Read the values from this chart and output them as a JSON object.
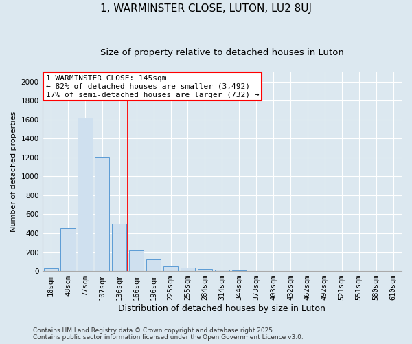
{
  "title1": "1, WARMINSTER CLOSE, LUTON, LU2 8UJ",
  "title2": "Size of property relative to detached houses in Luton",
  "xlabel": "Distribution of detached houses by size in Luton",
  "ylabel": "Number of detached properties",
  "categories": [
    "18sqm",
    "48sqm",
    "77sqm",
    "107sqm",
    "136sqm",
    "166sqm",
    "196sqm",
    "225sqm",
    "255sqm",
    "284sqm",
    "314sqm",
    "344sqm",
    "373sqm",
    "403sqm",
    "432sqm",
    "462sqm",
    "492sqm",
    "521sqm",
    "551sqm",
    "580sqm",
    "610sqm"
  ],
  "values": [
    30,
    450,
    1620,
    1210,
    500,
    220,
    125,
    50,
    40,
    20,
    15,
    10,
    0,
    0,
    0,
    0,
    0,
    0,
    0,
    0,
    0
  ],
  "bar_color": "#cfe0ef",
  "bar_edge_color": "#5b9bd5",
  "red_line_x": 4.5,
  "annotation_label": "1 WARMINSTER CLOSE: 145sqm",
  "annotation_line1": "← 82% of detached houses are smaller (3,492)",
  "annotation_line2": "17% of semi-detached houses are larger (732) →",
  "annotation_box_color": "white",
  "annotation_box_edge": "red",
  "ylim": [
    0,
    2100
  ],
  "yticks": [
    0,
    200,
    400,
    600,
    800,
    1000,
    1200,
    1400,
    1600,
    1800,
    2000
  ],
  "footer1": "Contains HM Land Registry data © Crown copyright and database right 2025.",
  "footer2": "Contains public sector information licensed under the Open Government Licence v3.0.",
  "bg_color": "#dce8f0",
  "plot_bg_color": "#dce8f0",
  "grid_color": "white",
  "title_fontsize": 11,
  "subtitle_fontsize": 9.5,
  "annotation_fontsize": 8,
  "ylabel_fontsize": 8,
  "xlabel_fontsize": 9,
  "tick_fontsize": 7.5,
  "footer_fontsize": 6.5
}
